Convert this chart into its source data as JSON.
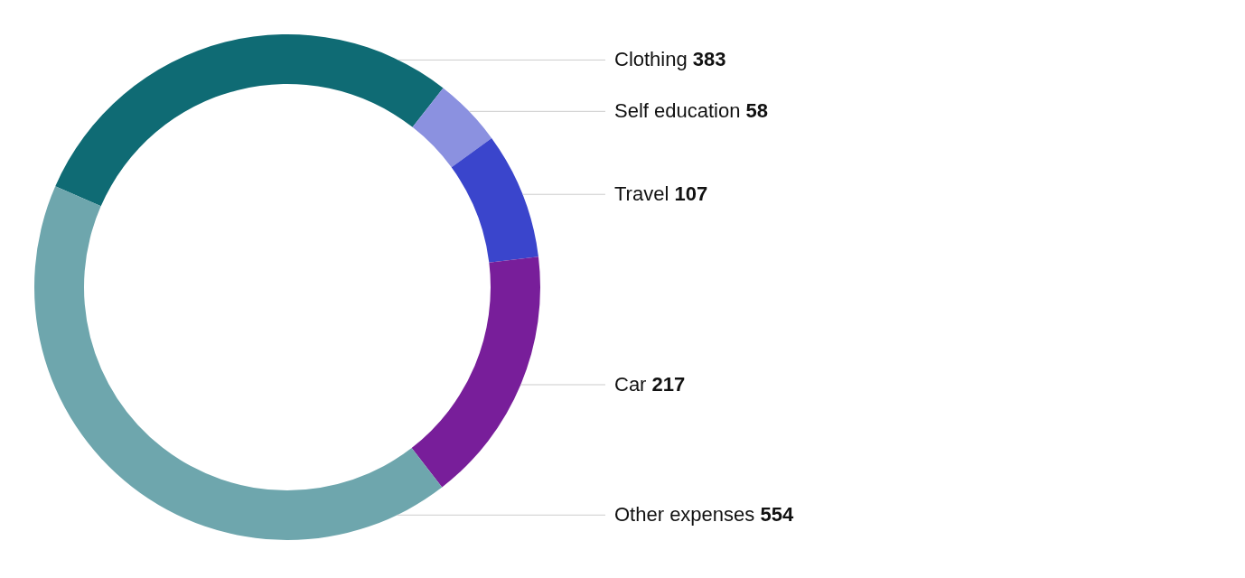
{
  "chart_data": {
    "type": "donut",
    "categories": [
      "Clothing",
      "Self education",
      "Travel",
      "Car",
      "Other expenses"
    ],
    "values": [
      383,
      58,
      107,
      217,
      554
    ],
    "colors": [
      "#0f6b74",
      "#8b91e0",
      "#3a45cc",
      "#781e9a",
      "#6ea6ad"
    ],
    "data_labels": true
  }
}
